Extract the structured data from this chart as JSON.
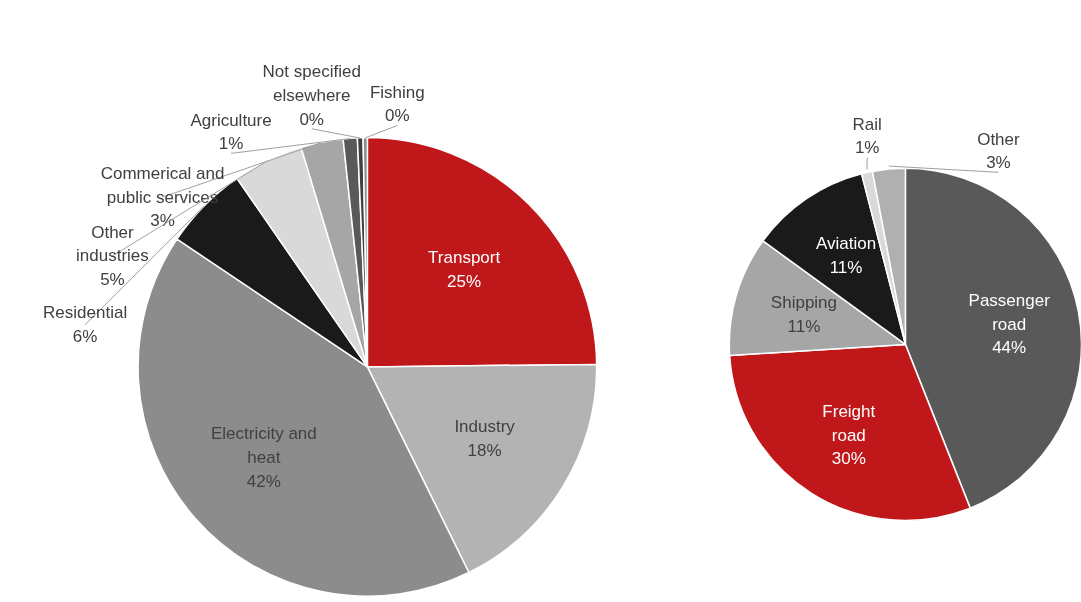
{
  "chart_data": [
    {
      "type": "pie",
      "categories": [
        "Transport",
        "Industry",
        "Electricity and heat",
        "Residential",
        "Other industries",
        "Commerical and public services",
        "Agriculture",
        "Not specified elsewhere",
        "Fishing"
      ],
      "values": [
        25,
        18,
        42,
        6,
        5,
        3,
        1,
        0.4,
        0.3
      ],
      "colors": [
        "#c0171a",
        "#b3b3b3",
        "#8c8c8c",
        "#1a1a1a",
        "#d9d9d9",
        "#a6a6a6",
        "#595959",
        "#404040",
        "#8c8c8c"
      ],
      "value_labels": [
        "25%",
        "18%",
        "42%",
        "6%",
        "5%",
        "3%",
        "1%",
        "0%",
        "0%"
      ]
    },
    {
      "type": "pie",
      "categories": [
        "Passenger road",
        "Freight road",
        "Shipping",
        "Aviation",
        "Rail",
        "Other"
      ],
      "values": [
        44,
        30,
        11,
        11,
        1,
        3
      ],
      "colors": [
        "#595959",
        "#c0171a",
        "#a6a6a6",
        "#1a1a1a",
        "#d9d9d9",
        "#b0b0b0"
      ],
      "value_labels": [
        "44%",
        "30%",
        "11%",
        "11%",
        "1%",
        "3%"
      ]
    }
  ]
}
